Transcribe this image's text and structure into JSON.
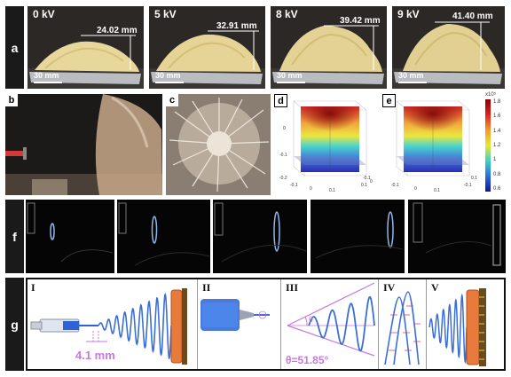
{
  "panels": {
    "a": {
      "label": "a",
      "frames": [
        {
          "voltage": "0 kV",
          "height": "24.02 mm",
          "scale": "30 mm"
        },
        {
          "voltage": "5 kV",
          "height": "32.91 mm",
          "scale": "30 mm"
        },
        {
          "voltage": "8 kV",
          "height": "39.42 mm",
          "scale": "30 mm"
        },
        {
          "voltage": "9 kV",
          "height": "41.40 mm",
          "scale": "30 mm"
        }
      ]
    },
    "b": {
      "label": "b"
    },
    "c": {
      "label": "c"
    },
    "d": {
      "label": "d",
      "ticks": [
        "0",
        "-0.1",
        "-0.2",
        "-0.1",
        "0",
        "0.1",
        "0.1",
        "-0.1",
        "0"
      ]
    },
    "e": {
      "label": "e",
      "ticks": [
        "-0.1",
        "0",
        "0.1",
        "-0.1",
        "0.1"
      ]
    },
    "colorbar": {
      "exponent": "x10⁵",
      "ticks": [
        "1.8",
        "1.6",
        "1.4",
        "1.2",
        "1",
        "0.8",
        "0.6"
      ]
    },
    "f": {
      "label": "f"
    },
    "g": {
      "label": "g",
      "subpanels": [
        "I",
        "II",
        "III",
        "IV",
        "V"
      ],
      "annotation_distance": "4.1 mm",
      "annotation_angle": "θ=51.85°",
      "theta_symbol": "θ"
    }
  },
  "colors": {
    "label_bg": "#1a1a1a",
    "spring_blue": "#3b6fd6",
    "annotation_purple": "#c77ad9",
    "collector_orange": "#e87a3c"
  }
}
